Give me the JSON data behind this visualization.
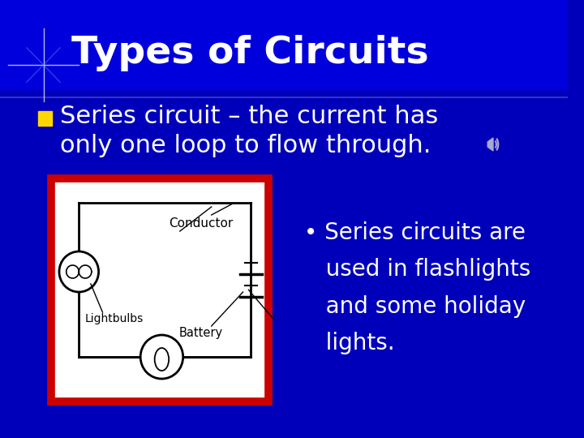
{
  "bg_color": "#0000bb",
  "title": "Types of Circuits",
  "title_color": "white",
  "title_fontsize": 34,
  "bullet_color": "#FFD700",
  "bullet_text_line1": "Series circuit – the current has",
  "bullet_text_line2": "only one loop to flow through.",
  "bullet_fontsize": 22,
  "sub_bullet_text": "• Series circuits are\n   used in flashlights\n   and some holiday\n   lights.",
  "sub_bullet_fontsize": 20,
  "sub_bullet_color": "white",
  "diagram_box_color": "#CC0000",
  "diagram_inner_color": "white",
  "diagram_label_conductor": "Conductor",
  "diagram_label_lightbulbs": "Lightbulbs",
  "diagram_label_battery": "Battery",
  "star_color": "#aaaaff",
  "divider_color": "#3333cc"
}
